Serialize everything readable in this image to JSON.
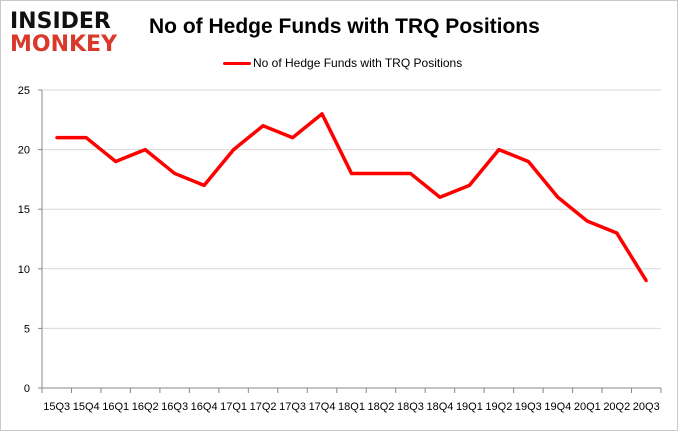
{
  "logo": {
    "line1": "INSIDER",
    "line2": "MONKEY"
  },
  "chart_data": {
    "type": "line",
    "title": "No of Hedge Funds with TRQ Positions",
    "categories": [
      "15Q3",
      "15Q4",
      "16Q1",
      "16Q2",
      "16Q3",
      "16Q4",
      "17Q1",
      "17Q2",
      "17Q3",
      "17Q4",
      "18Q1",
      "18Q2",
      "18Q3",
      "18Q4",
      "19Q1",
      "19Q2",
      "19Q3",
      "19Q4",
      "20Q1",
      "20Q2",
      "20Q3"
    ],
    "series": [
      {
        "name": "No of Hedge Funds with TRQ Positions",
        "values": [
          21,
          21,
          19,
          20,
          18,
          17,
          20,
          22,
          21,
          23,
          18,
          18,
          18,
          16,
          17,
          20,
          19,
          16,
          14,
          13,
          9
        ],
        "color": "#ff0000"
      }
    ],
    "ylim": [
      0,
      25
    ],
    "yticks": [
      0,
      5,
      10,
      15,
      20,
      25
    ],
    "grid": true,
    "legend": "top-center",
    "xlabel": "",
    "ylabel": ""
  }
}
